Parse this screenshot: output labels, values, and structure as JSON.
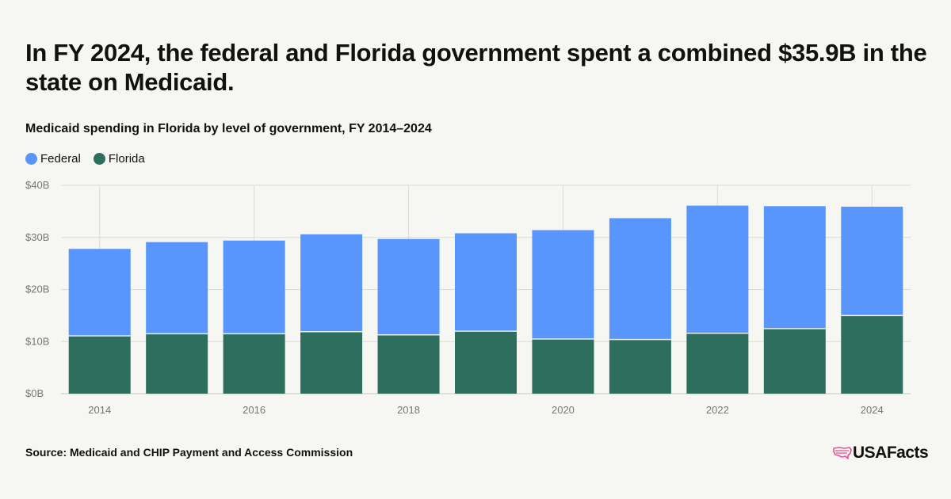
{
  "headline": "In FY 2024, the federal and Florida government spent a combined $35.9B in the state on Medicaid.",
  "source": "Source: Medicaid and CHIP Payment and Access Commission",
  "brand": {
    "name": "USAFacts",
    "logo_icon": "us-map-icon"
  },
  "colors": {
    "federal": "#5896fd",
    "florida": "#2d6e5e",
    "grid": "#dcdcd6",
    "brand_accent": "#e8509a"
  },
  "chart_data": {
    "type": "bar",
    "stacked": true,
    "title": "Medicaid spending in Florida by level of government, FY 2014–2024",
    "categories": [
      "2014",
      "2015",
      "2016",
      "2017",
      "2018",
      "2019",
      "2020",
      "2021",
      "2022",
      "2023",
      "2024"
    ],
    "xtick_labels": [
      "2014",
      "2016",
      "2018",
      "2020",
      "2022",
      "2024"
    ],
    "yticks": [
      0,
      10,
      20,
      30,
      40
    ],
    "ytick_labels": [
      "$0B",
      "$10B",
      "$20B",
      "$30B",
      "$40B"
    ],
    "ylim": [
      0,
      40
    ],
    "grid": true,
    "legend": "top-left",
    "series": [
      {
        "name": "Florida",
        "values": [
          11.1,
          11.5,
          11.5,
          11.9,
          11.3,
          12.0,
          10.5,
          10.4,
          11.6,
          12.5,
          15.0
        ]
      },
      {
        "name": "Federal",
        "values": [
          16.7,
          17.6,
          17.9,
          18.7,
          18.4,
          18.8,
          20.9,
          23.3,
          24.5,
          23.5,
          20.9
        ]
      }
    ]
  }
}
